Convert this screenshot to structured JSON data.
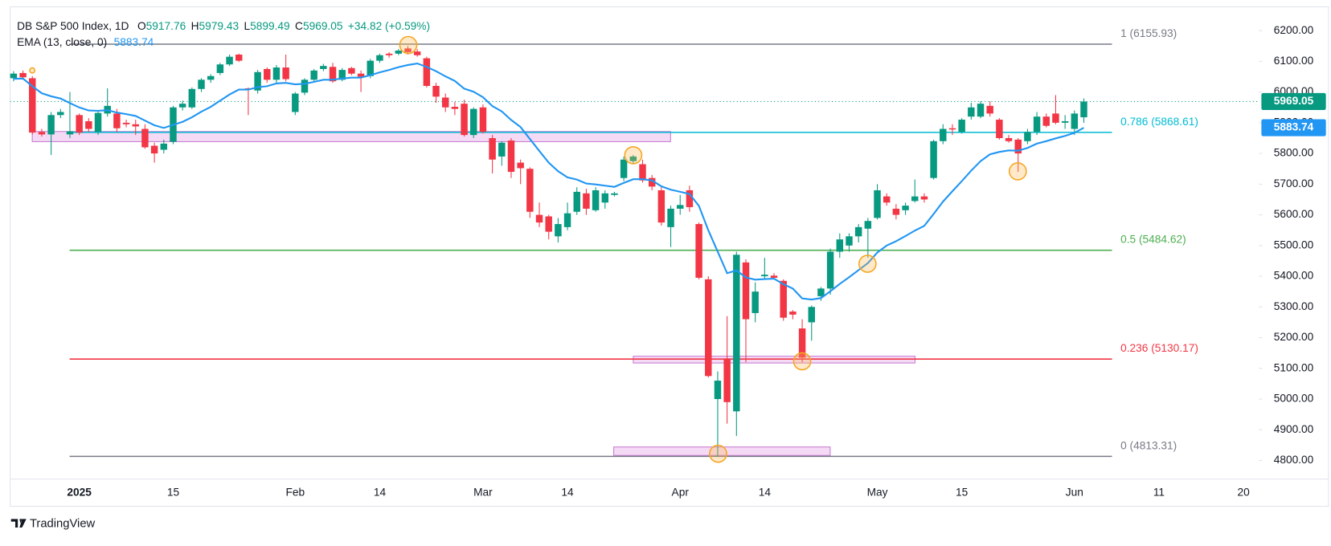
{
  "chart_data": {
    "type": "candlestick",
    "header": {
      "title": "DB S&P 500 Index, 1D",
      "fields": [
        "O",
        "H",
        "L",
        "C"
      ],
      "change": "+34.82 (+0.59%)"
    },
    "categories": [
      null,
      null,
      null,
      null,
      null,
      null,
      null,
      "2025",
      null,
      null,
      null,
      null,
      null,
      null,
      null,
      null,
      null,
      "15",
      null,
      null,
      null,
      null,
      null,
      null,
      null,
      null,
      null,
      null,
      null,
      null,
      "Feb",
      null,
      null,
      null,
      null,
      null,
      null,
      null,
      null,
      "14",
      null,
      null,
      null,
      null,
      null,
      null,
      null,
      null,
      null,
      null,
      "Mar",
      null,
      null,
      null,
      null,
      null,
      null,
      null,
      null,
      "14",
      null,
      null,
      null,
      null,
      null,
      null,
      null,
      null,
      null,
      null,
      null,
      "Apr",
      null,
      null,
      null,
      null,
      null,
      null,
      null,
      null,
      "14",
      null,
      null,
      null,
      null,
      null,
      null,
      null,
      null,
      null,
      null,
      null,
      "May",
      null,
      null,
      null,
      null,
      null,
      null,
      null,
      null,
      "15",
      null,
      null,
      null,
      null,
      null,
      null,
      null,
      null,
      null,
      null,
      null,
      "Jun",
      null,
      null,
      null,
      null,
      null,
      null,
      null,
      null,
      "11",
      null,
      null,
      null,
      null,
      null,
      null,
      null,
      null,
      "20",
      null
    ],
    "open": [
      6045,
      6062,
      6045,
      5870,
      5862,
      5925,
      5862,
      5925,
      5905,
      5870,
      5930,
      5930,
      5900,
      5895,
      5880,
      5825,
      5812,
      5838,
      5950,
      5950,
      6010,
      6040,
      6062,
      6090,
      6122,
      6012,
      6005,
      6075,
      6040,
      6080,
      5935,
      5998,
      6040,
      6075,
      6082,
      6040,
      6078,
      6060,
      6052,
      6102,
      6125,
      6125,
      6142,
      6132,
      6110,
      6020,
      5982,
      5952,
      5962,
      5860,
      5950,
      5850,
      5790,
      5842,
      5770,
      5750,
      5600,
      5595,
      5530,
      5560,
      5610,
      5670,
      5615,
      5640,
      5665,
      5720,
      5775,
      5765,
      5720,
      5680,
      5560,
      5620,
      5680,
      5570,
      5390,
      5000,
      5130,
      4960,
      5445,
      5280,
      5400,
      5402,
      5385,
      5285,
      5230,
      5250,
      5335,
      5360,
      5480,
      5500,
      5530,
      5555,
      5590,
      5660,
      5620,
      5615,
      5645,
      5660,
      5720,
      5840,
      5882,
      5870,
      5920,
      5920,
      5955,
      5910,
      5850,
      5845,
      5840,
      5870,
      5920,
      5930,
      5900,
      5880,
      5917.76,
      null,
      null,
      null,
      null,
      null,
      null,
      null,
      null,
      null,
      null,
      null,
      null,
      null,
      null,
      null,
      null,
      null,
      null
    ],
    "high": [
      6068,
      6070,
      6052,
      5880,
      5935,
      5945,
      6000,
      5930,
      5915,
      5940,
      6012,
      5945,
      5910,
      5910,
      5895,
      5835,
      5845,
      5955,
      5972,
      6015,
      6045,
      6058,
      6095,
      6122,
      6125,
      6015,
      6072,
      6080,
      6088,
      6122,
      6000,
      6045,
      6075,
      6092,
      6095,
      6078,
      6082,
      6070,
      6108,
      6125,
      6130,
      6140,
      6150,
      6140,
      6115,
      6030,
      5995,
      5968,
      5975,
      5950,
      5960,
      5860,
      5840,
      5850,
      5780,
      5755,
      5640,
      5600,
      5590,
      5640,
      5690,
      5685,
      5690,
      5680,
      5675,
      5790,
      5795,
      5780,
      5730,
      5690,
      5630,
      5665,
      5695,
      5575,
      5400,
      5090,
      5270,
      5480,
      5455,
      5380,
      5460,
      5410,
      5390,
      5290,
      5260,
      5305,
      5365,
      5490,
      5540,
      5540,
      5570,
      5590,
      5700,
      5670,
      5635,
      5640,
      5715,
      5670,
      5845,
      5895,
      5895,
      5915,
      5965,
      5970,
      5970,
      5915,
      5860,
      5850,
      5880,
      5935,
      5930,
      5990,
      5925,
      5940,
      5979.43,
      null,
      null,
      null,
      null,
      null,
      null,
      null,
      null,
      null,
      null,
      null,
      null,
      null,
      null,
      null,
      null,
      null,
      null
    ],
    "low": [
      6035,
      6040,
      5862,
      5855,
      5795,
      5915,
      5850,
      5860,
      5870,
      5860,
      5920,
      5870,
      5885,
      5860,
      5815,
      5770,
      5800,
      5830,
      5940,
      5945,
      6000,
      6030,
      6055,
      6085,
      6098,
      5925,
      5995,
      6030,
      6030,
      6035,
      5925,
      5990,
      6035,
      6068,
      6030,
      6035,
      6055,
      6000,
      6045,
      6095,
      6112,
      6120,
      6122,
      6115,
      6015,
      5965,
      5935,
      5925,
      5855,
      5850,
      5865,
      5735,
      5760,
      5720,
      5700,
      5590,
      5560,
      5520,
      5510,
      5550,
      5600,
      5600,
      5610,
      5620,
      5660,
      5710,
      5765,
      5705,
      5680,
      5565,
      5495,
      5600,
      5610,
      5390,
      5070,
      4813,
      4920,
      4880,
      5120,
      5250,
      5390,
      5390,
      5255,
      5260,
      5120,
      5190,
      5320,
      5340,
      5460,
      5480,
      5510,
      5460,
      5585,
      5630,
      5585,
      5600,
      5640,
      5640,
      5715,
      5830,
      5860,
      5865,
      5910,
      5915,
      5920,
      5845,
      5835,
      5740,
      5830,
      5860,
      5885,
      5895,
      5880,
      5860,
      5899.49,
      null,
      null,
      null,
      null,
      null,
      null,
      null,
      null,
      null,
      null,
      null,
      null,
      null,
      null,
      null,
      null,
      null,
      null
    ],
    "close": [
      6060,
      6048,
      5868,
      5862,
      5925,
      5935,
      5872,
      5868,
      5880,
      5932,
      5955,
      5882,
      5895,
      5888,
      5820,
      5800,
      5832,
      5950,
      5962,
      6010,
      6040,
      6052,
      6090,
      6115,
      6102,
      6008,
      6065,
      6040,
      6080,
      6042,
      5995,
      6040,
      6070,
      6085,
      6035,
      6072,
      6060,
      6050,
      6102,
      6120,
      6120,
      6135,
      6130,
      6120,
      6020,
      5985,
      5950,
      5945,
      5860,
      5945,
      5870,
      5780,
      5835,
      5740,
      5752,
      5610,
      5575,
      5545,
      5570,
      5605,
      5675,
      5620,
      5680,
      5670,
      5670,
      5780,
      5790,
      5712,
      5692,
      5575,
      5620,
      5632,
      5625,
      5395,
      5075,
      5060,
      4990,
      5470,
      5260,
      5350,
      5405,
      5395,
      5265,
      5275,
      5135,
      5300,
      5360,
      5480,
      5520,
      5530,
      5560,
      5580,
      5680,
      5640,
      5600,
      5630,
      5660,
      5650,
      5840,
      5880,
      5878,
      5910,
      5950,
      5962,
      5930,
      5850,
      5840,
      5800,
      5870,
      5920,
      5890,
      5900,
      5905,
      5930,
      5969.05,
      null,
      null,
      null,
      null,
      null,
      null,
      null,
      null,
      null,
      null,
      null,
      null,
      null,
      null,
      null,
      null,
      null,
      null
    ],
    "up_color": "#089981",
    "down_color": "#f23645",
    "ema": {
      "name": "EMA (13, close, 0)",
      "color": "#2196f3",
      "values": [
        6043,
        6044,
        6019,
        5996,
        5986,
        5979,
        5964,
        5950,
        5940,
        5939,
        5941,
        5933,
        5928,
        5922,
        5907,
        5892,
        5883,
        5893,
        5903,
        5918,
        5936,
        5952,
        5972,
        5992,
        6008,
        6008,
        6016,
        6019,
        6028,
        6030,
        6025,
        6027,
        6033,
        6040,
        6040,
        6044,
        6047,
        6047,
        6055,
        6064,
        6072,
        6081,
        6088,
        6093,
        6082,
        6068,
        6051,
        6036,
        6011,
        6001,
        5983,
        5954,
        5937,
        5909,
        5886,
        5847,
        5808,
        5770,
        5742,
        5722,
        5715,
        5702,
        5699,
        5695,
        5691,
        5704,
        5716,
        5716,
        5712,
        5693,
        5682,
        5675,
        5668,
        5629,
        5550,
        5480,
        5410,
        5419,
        5396,
        5389,
        5391,
        5392,
        5374,
        5360,
        5328,
        5324,
        5329,
        5351,
        5375,
        5397,
        5420,
        5443,
        5477,
        5500,
        5514,
        5531,
        5549,
        5564,
        5603,
        5643,
        5677,
        5710,
        5744,
        5775,
        5797,
        5805,
        5810,
        5809,
        5818,
        5832,
        5840,
        5849,
        5857,
        5867,
        5883.74,
        null,
        null,
        null,
        null,
        null,
        null,
        null,
        null,
        null,
        null,
        null,
        null,
        null,
        null,
        null,
        null,
        null,
        null
      ]
    },
    "hlines": [
      {
        "label": "1 (6155.93)",
        "value": 6155.93,
        "color": "#787b86"
      },
      {
        "label": "0.786 (5868.61)",
        "value": 5868.61,
        "color": "#00bcd4"
      },
      {
        "label": "0.5 (5484.62)",
        "value": 5484.62,
        "color": "#4caf50"
      },
      {
        "label": "0.236 (5130.17)",
        "value": 5130.17,
        "color": "#f23645"
      },
      {
        "label": "0 (4813.31)",
        "value": 4813.31,
        "color": "#787b86"
      }
    ],
    "ylim": [
      4739,
      6272
    ],
    "yticks": [
      {
        "value": 4800,
        "label": "4800.00"
      },
      {
        "value": 4900,
        "label": "4900.00"
      },
      {
        "value": 5000,
        "label": "5000.00"
      },
      {
        "value": 5100,
        "label": "5100.00"
      },
      {
        "value": 5200,
        "label": "5200.00"
      },
      {
        "value": 5300,
        "label": "5300.00"
      },
      {
        "value": 5400,
        "label": "5400.00"
      },
      {
        "value": 5500,
        "label": "5500.00"
      },
      {
        "value": 5600,
        "label": "5600.00"
      },
      {
        "value": 5700,
        "label": "5700.00"
      },
      {
        "value": 5800,
        "label": "5800.00"
      },
      {
        "value": 5900,
        "label": "5900.00"
      },
      {
        "value": 6000,
        "label": "6000.00"
      },
      {
        "value": 6100,
        "label": "6100.00"
      },
      {
        "value": 6200,
        "label": "6200.00"
      }
    ]
  },
  "footer": {
    "brand": "TradingView"
  }
}
